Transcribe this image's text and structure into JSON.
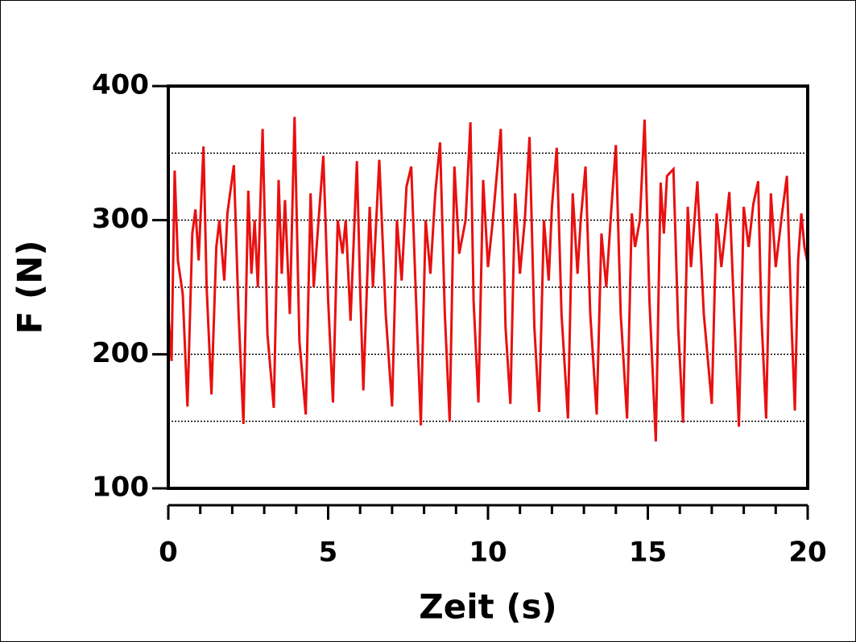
{
  "chart_data": {
    "type": "line",
    "xlabel": "Zeit (s)",
    "ylabel": "F (N)",
    "color": "#e81010",
    "xlim": [
      0,
      20
    ],
    "xticks": [
      0,
      5,
      10,
      15,
      20
    ],
    "x_minor_ticks": [
      1,
      2,
      3,
      4,
      6,
      7,
      8,
      9,
      11,
      12,
      13,
      14,
      16,
      17,
      18,
      19
    ],
    "ylim": [
      100,
      400
    ],
    "yticks": [
      100,
      200,
      300,
      400
    ],
    "grid_lines": [
      150,
      200,
      250,
      300,
      350
    ],
    "x": [
      0,
      0.1,
      0.2,
      0.3,
      0.45,
      0.6,
      0.75,
      0.85,
      0.95,
      1.1,
      1.2,
      1.35,
      1.5,
      1.6,
      1.75,
      1.85,
      2.05,
      2.2,
      2.35,
      2.5,
      2.6,
      2.7,
      2.8,
      2.95,
      3.1,
      3.3,
      3.45,
      3.55,
      3.65,
      3.8,
      3.95,
      4.1,
      4.3,
      4.45,
      4.55,
      4.7,
      4.85,
      5.0,
      5.15,
      5.3,
      5.45,
      5.55,
      5.7,
      5.9,
      6.0,
      6.1,
      6.3,
      6.4,
      6.6,
      6.8,
      7.0,
      7.15,
      7.3,
      7.45,
      7.6,
      7.75,
      7.9,
      8.05,
      8.2,
      8.35,
      8.5,
      8.65,
      8.8,
      8.95,
      9.1,
      9.3,
      9.45,
      9.55,
      9.7,
      9.85,
      10.0,
      10.15,
      10.4,
      10.55,
      10.7,
      10.85,
      11.0,
      11.15,
      11.3,
      11.45,
      11.6,
      11.75,
      11.9,
      12.0,
      12.15,
      12.3,
      12.5,
      12.65,
      12.8,
      12.9,
      13.05,
      13.2,
      13.4,
      13.55,
      13.7,
      13.85,
      14.0,
      14.15,
      14.35,
      14.5,
      14.6,
      14.75,
      14.9,
      15.05,
      15.25,
      15.4,
      15.5,
      15.6,
      15.8,
      15.95,
      16.1,
      16.25,
      16.35,
      16.55,
      16.75,
      17.0,
      17.15,
      17.3,
      17.55,
      17.7,
      17.85,
      18.0,
      18.15,
      18.3,
      18.45,
      18.55,
      18.7,
      18.85,
      19.0,
      19.2,
      19.35,
      19.5,
      19.6,
      19.7,
      19.8,
      19.9,
      20.0
    ],
    "values": [
      230,
      195,
      337,
      270,
      245,
      161,
      290,
      308,
      270,
      355,
      250,
      170,
      280,
      300,
      255,
      305,
      341,
      230,
      148,
      322,
      260,
      300,
      250,
      368,
      215,
      160,
      330,
      260,
      315,
      230,
      377,
      210,
      155,
      320,
      250,
      300,
      348,
      240,
      164,
      300,
      275,
      300,
      225,
      344,
      250,
      173,
      310,
      250,
      345,
      230,
      161,
      300,
      255,
      325,
      340,
      240,
      147,
      300,
      260,
      320,
      358,
      230,
      150,
      340,
      275,
      300,
      373,
      240,
      164,
      330,
      265,
      300,
      368,
      220,
      163,
      320,
      260,
      300,
      362,
      220,
      157,
      300,
      255,
      310,
      354,
      230,
      152,
      320,
      260,
      300,
      340,
      230,
      155,
      290,
      250,
      305,
      356,
      230,
      152,
      305,
      280,
      300,
      375,
      240,
      135,
      328,
      290,
      333,
      338,
      220,
      149,
      310,
      265,
      329,
      230,
      163,
      305,
      265,
      321,
      230,
      146,
      310,
      280,
      312,
      329,
      230,
      152,
      320,
      265,
      305,
      333,
      220,
      158,
      270,
      305,
      280,
      268
    ]
  }
}
